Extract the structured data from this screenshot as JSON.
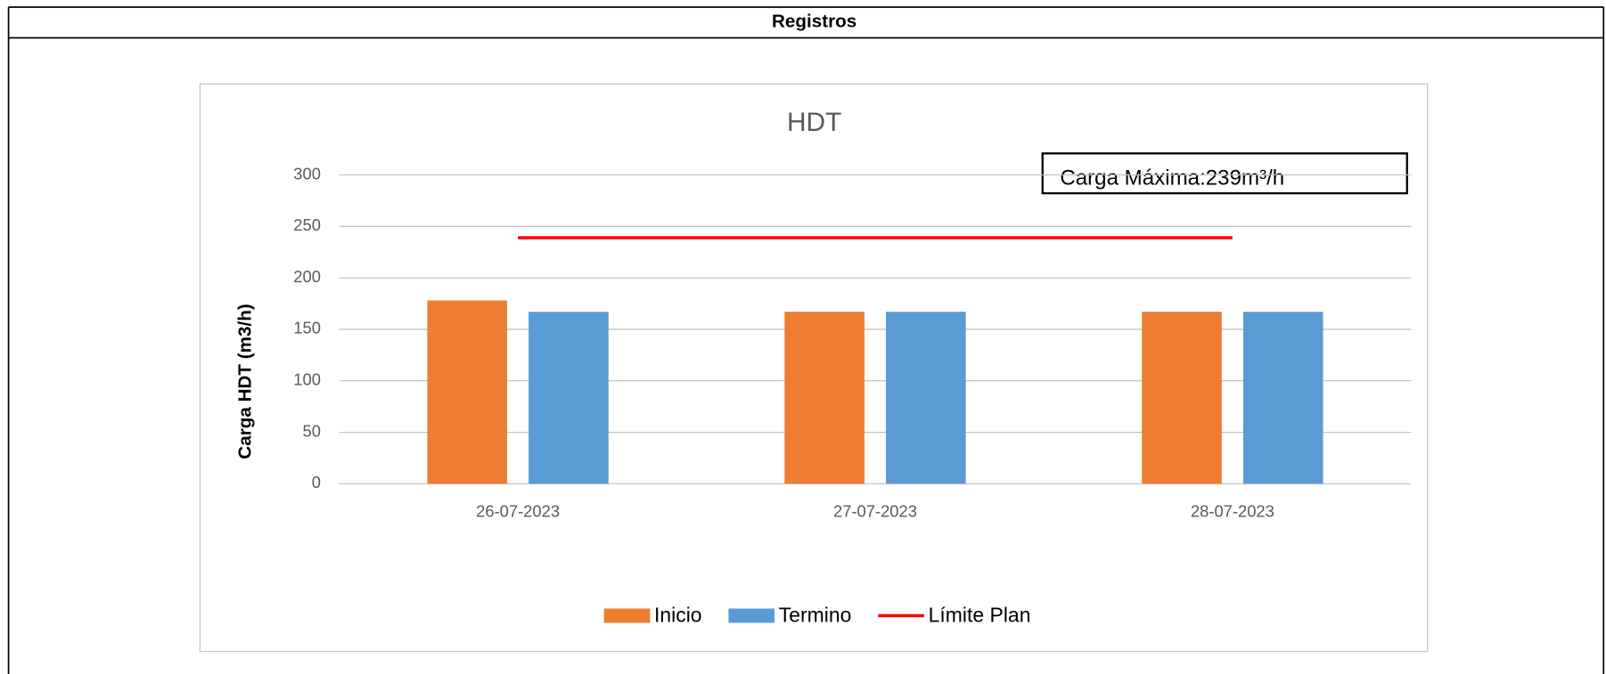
{
  "header": {
    "title": "Registros"
  },
  "chart_data": {
    "type": "bar",
    "title": "HDT",
    "y_label": "Carga HDT (m3/h)",
    "annotation": "Carga Máxima:239m³/h",
    "categories": [
      "26-07-2023",
      "27-07-2023",
      "28-07-2023"
    ],
    "series": [
      {
        "name": "Inicio",
        "color": "#ed7d31",
        "values": [
          178,
          167,
          167
        ]
      },
      {
        "name": "Termino",
        "color": "#5b9bd5",
        "values": [
          167,
          167,
          167
        ]
      },
      {
        "name": "Límite Plan",
        "type": "line",
        "color": "#ff0000",
        "values": [
          239,
          239,
          239
        ]
      }
    ],
    "ylim": [
      0,
      300
    ],
    "yticks": [
      0,
      50,
      100,
      150,
      200,
      250,
      300
    ],
    "grid": true,
    "legend": "bottom"
  }
}
